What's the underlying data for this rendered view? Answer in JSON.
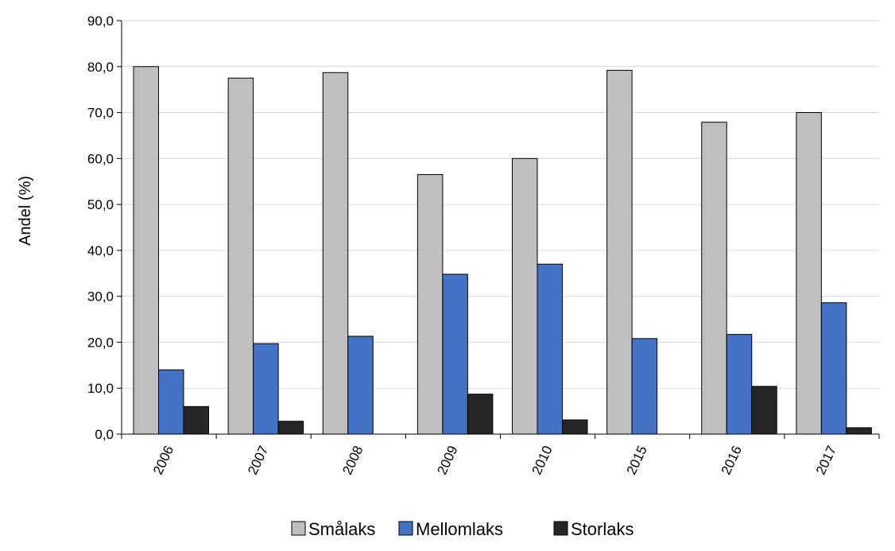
{
  "chart_data": {
    "type": "bar",
    "title": "",
    "xlabel": "",
    "ylabel": "Andel (%)",
    "ylim": [
      0,
      90
    ],
    "ytick_step": 10,
    "ytick_labels": [
      "0,0",
      "10,0",
      "20,0",
      "30,0",
      "40,0",
      "50,0",
      "60,0",
      "70,0",
      "80,0",
      "90,0"
    ],
    "categories": [
      "2006",
      "2007",
      "2008",
      "2009",
      "2010",
      "2015",
      "2016",
      "2017"
    ],
    "grid": true,
    "legend_position": "bottom",
    "series": [
      {
        "name": "Smålaks",
        "color": "#BFBFBF",
        "values": [
          80.0,
          77.5,
          78.7,
          56.5,
          60.0,
          79.2,
          67.9,
          70.0
        ]
      },
      {
        "name": "Mellomlaks",
        "color": "#4472C4",
        "values": [
          14.0,
          19.7,
          21.3,
          34.8,
          37.0,
          20.8,
          21.7,
          28.6
        ]
      },
      {
        "name": "Storlaks",
        "color": "#262626",
        "values": [
          6.0,
          2.8,
          0,
          8.7,
          3.1,
          0,
          10.4,
          1.4
        ]
      }
    ]
  }
}
